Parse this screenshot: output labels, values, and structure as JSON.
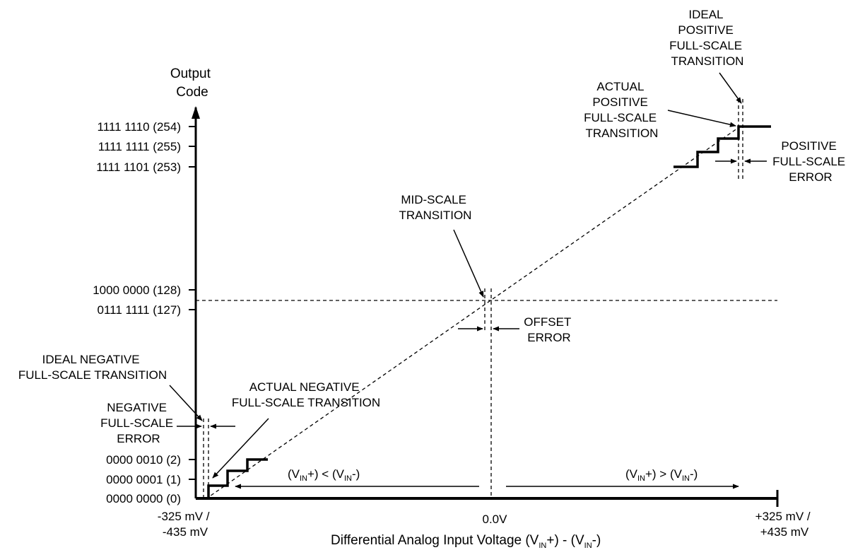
{
  "axes": {
    "y_title": [
      "Output",
      "Code"
    ],
    "x_title": {
      "p1": "Differential Analog Input Voltage (V",
      "s1": "IN",
      "p2": "+) - (V",
      "s2": "IN",
      "p3": "-)"
    },
    "x_ticks": {
      "left": [
        "-325 mV /",
        "-435 mV"
      ],
      "mid": "0.0V",
      "right": [
        "+325 mV /",
        "+435 mV"
      ]
    }
  },
  "y_ticks": {
    "t254": "1111 1110 (254)",
    "t255": "1111 1111 (255)",
    "t253": "1111 1101 (253)",
    "t128": "1000 0000 (128)",
    "t127": "0111 1111 (127)",
    "t2": "0000 0010 (2)",
    "t1": "0000 0001 (1)",
    "t0": "0000 0000 (0)"
  },
  "annotations": {
    "ideal_pos": [
      "IDEAL",
      "POSITIVE",
      "FULL-SCALE",
      "TRANSITION"
    ],
    "actual_pos": [
      "ACTUAL",
      "POSITIVE",
      "FULL-SCALE",
      "TRANSITION"
    ],
    "pos_error": [
      "POSITIVE",
      "FULL-SCALE",
      "ERROR"
    ],
    "mid_scale": [
      "MID-SCALE",
      "TRANSITION"
    ],
    "offset_error": [
      "OFFSET",
      "ERROR"
    ],
    "ideal_neg": [
      "IDEAL NEGATIVE",
      "FULL-SCALE TRANSITION"
    ],
    "actual_neg": [
      "ACTUAL NEGATIVE",
      "FULL-SCALE TRANSITION"
    ],
    "neg_error": [
      "NEGATIVE",
      "FULL-SCALE",
      "ERROR"
    ]
  },
  "range_labels": {
    "left": {
      "p1": "(V",
      "s1": "IN",
      "p2": "+) < (V",
      "s2": "IN",
      "p3": "-)"
    },
    "right": {
      "p1": "(V",
      "s1": "IN",
      "p2": "+) > (V",
      "s2": "IN",
      "p3": "-)"
    }
  }
}
